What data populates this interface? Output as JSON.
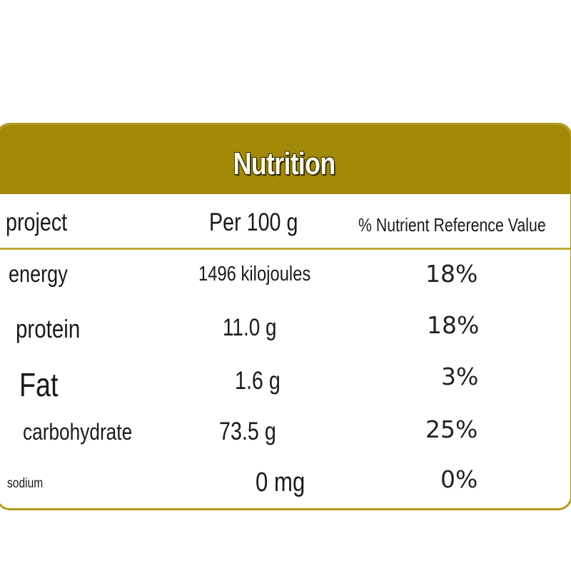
{
  "title": "Nutrition",
  "columns": {
    "item": "project",
    "per100": "Per 100 g",
    "nrv": "% Nutrient Reference Value"
  },
  "rows": [
    {
      "name": "energy",
      "amount": "1496 kilojoules",
      "nrv": "18%"
    },
    {
      "name": "protein",
      "amount": "11.0 g",
      "nrv": "18%"
    },
    {
      "name": "Fat",
      "amount": "1.6 g",
      "nrv": "3%"
    },
    {
      "name": "carbohydrate",
      "amount": "73.5 g",
      "nrv": "25%"
    },
    {
      "name": "sodium",
      "amount": "0 mg",
      "nrv": "0%"
    }
  ],
  "colors": {
    "header": "#a38908",
    "border": "#b49a22"
  }
}
